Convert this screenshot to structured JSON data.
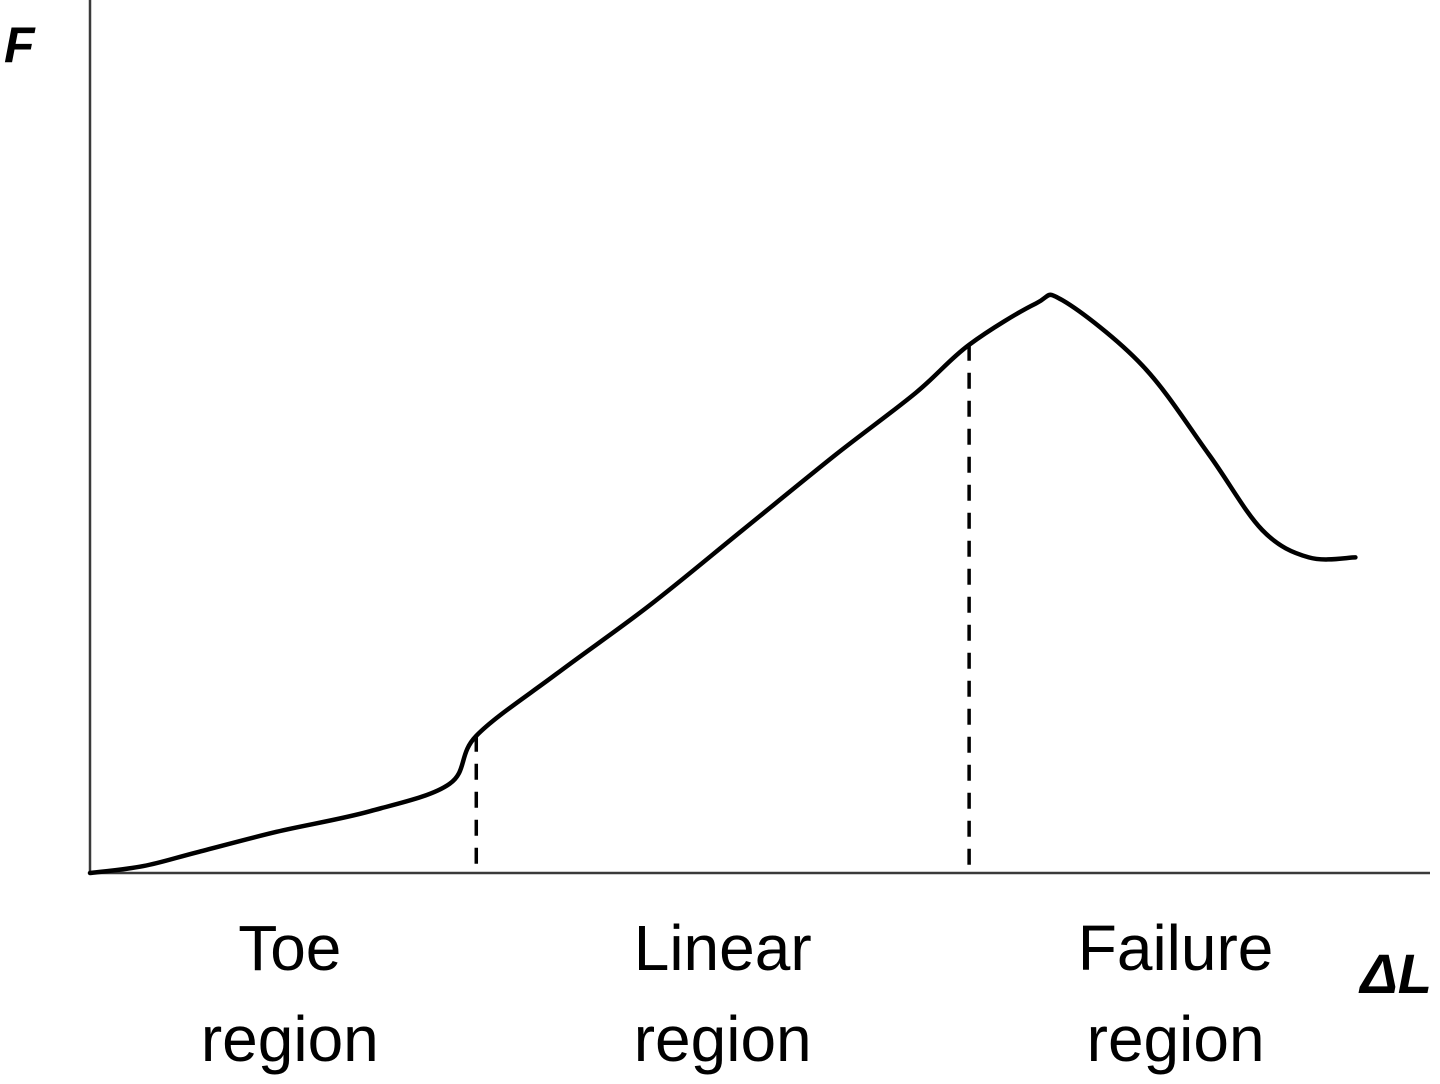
{
  "chart_data": {
    "type": "line",
    "title": "",
    "ylabel": "F",
    "xlabel": "ΔL",
    "xlim": [
      0,
      1
    ],
    "ylim": [
      0,
      1
    ],
    "grid": false,
    "legend": "none",
    "ticks": "none",
    "series": [
      {
        "color": "#000000",
        "points": [
          [
            0.0,
            0.0
          ],
          [
            0.04,
            0.01
          ],
          [
            0.08,
            0.03
          ],
          [
            0.14,
            0.06
          ],
          [
            0.21,
            0.09
          ],
          [
            0.27,
            0.13
          ],
          [
            0.29,
            0.2
          ],
          [
            0.35,
            0.29
          ],
          [
            0.42,
            0.39
          ],
          [
            0.49,
            0.5
          ],
          [
            0.56,
            0.61
          ],
          [
            0.62,
            0.7
          ],
          [
            0.66,
            0.77
          ],
          [
            0.71,
            0.83
          ],
          [
            0.73,
            0.835
          ],
          [
            0.79,
            0.74
          ],
          [
            0.84,
            0.61
          ],
          [
            0.88,
            0.5
          ],
          [
            0.915,
            0.46
          ],
          [
            0.95,
            0.46
          ]
        ]
      }
    ],
    "boundaries": [
      {
        "x": 0.29,
        "y_top": 0.2
      },
      {
        "x": 0.66,
        "y_top": 0.77
      }
    ],
    "regions": [
      {
        "line1": "Toe",
        "line2": "region",
        "x": 0.15
      },
      {
        "line1": "Linear",
        "line2": "region",
        "x": 0.475
      },
      {
        "line1": "Failure",
        "line2": "region",
        "x": 0.815
      }
    ]
  }
}
